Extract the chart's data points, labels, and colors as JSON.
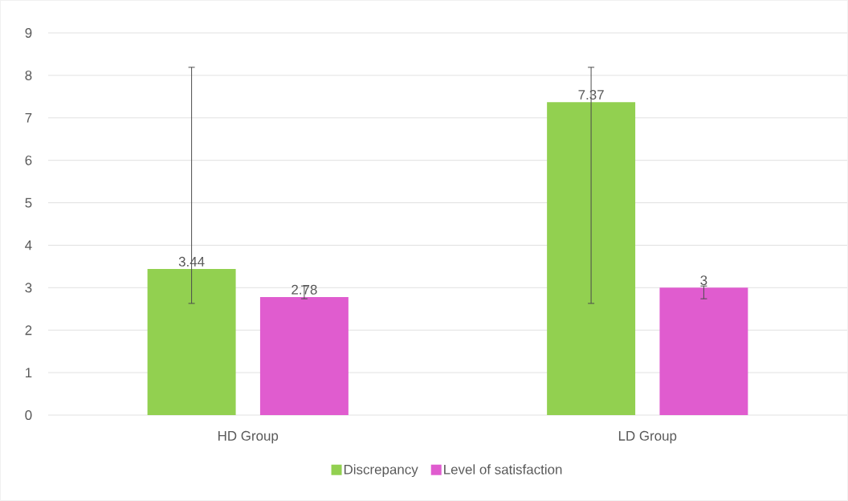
{
  "chart_data": {
    "type": "bar",
    "categories": [
      "HD Group",
      "LD Group"
    ],
    "series": [
      {
        "name": "Discrepancy",
        "color": "#92d050",
        "values": [
          3.44,
          7.37
        ],
        "errors": [
          [
            2.63,
            8.19
          ],
          [
            2.63,
            8.19
          ]
        ]
      },
      {
        "name": "Level of satisfaction",
        "color": "#e05ccf",
        "values": [
          2.78,
          3
        ],
        "errors": [
          [
            2.74,
            3.04
          ],
          [
            2.74,
            3.04
          ]
        ]
      }
    ],
    "ylim": [
      0,
      9
    ],
    "yticks": [
      0,
      1,
      2,
      3,
      4,
      5,
      6,
      7,
      8,
      9
    ],
    "grid": "y",
    "legend": "bottom",
    "data_labels": true
  }
}
